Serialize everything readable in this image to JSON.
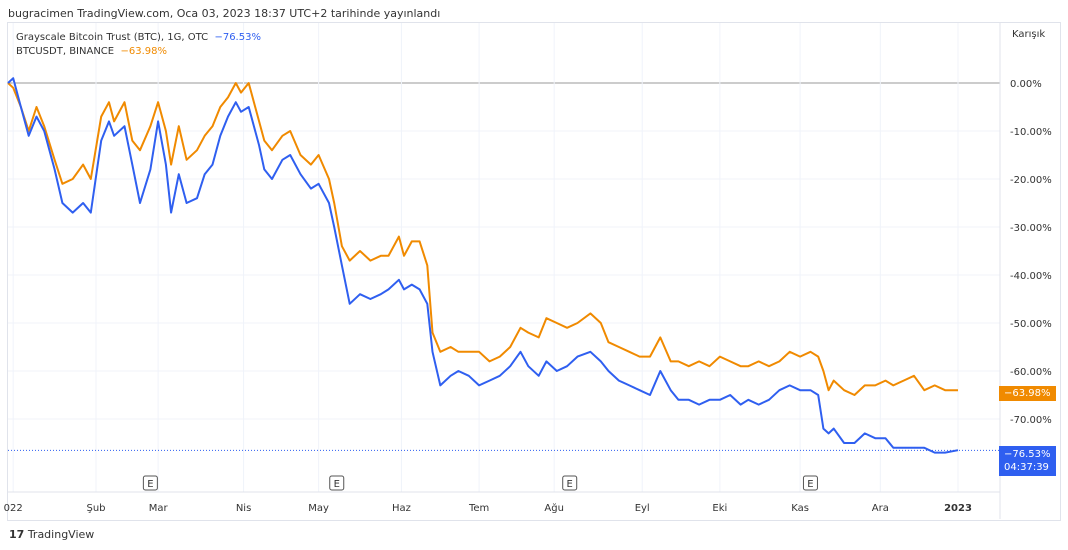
{
  "header": "bugracimen TradingView.com, Oca 03, 2023 18:37 UTC+2 tarihinde yayınlandı",
  "scale_mode": "Karışık",
  "footer": "TradingView",
  "chart_data": {
    "type": "line",
    "title": "",
    "xlabel": "",
    "ylabel": "",
    "ylim": [
      -80,
      5
    ],
    "grid": true,
    "y_ticks": [
      "0.00%",
      "-10.00%",
      "-20.00%",
      "-30.00%",
      "-40.00%",
      "-50.00%",
      "-60.00%",
      "-70.00%"
    ],
    "y_tick_values": [
      0,
      -10,
      -20,
      -30,
      -40,
      -50,
      -60,
      -70
    ],
    "x_ticks": [
      "022",
      "Şub",
      "Mar",
      "Nis",
      "May",
      "Haz",
      "Tem",
      "Ağu",
      "Eyl",
      "Eki",
      "Kas",
      "Ara",
      "2023"
    ],
    "x_tick_days": [
      2,
      34,
      58,
      91,
      120,
      152,
      182,
      211,
      245,
      275,
      306,
      337,
      367
    ],
    "event_markers": {
      "label": "E",
      "days": [
        55,
        127,
        217,
        310
      ]
    },
    "x_days": [
      0,
      2,
      5,
      8,
      11,
      14,
      18,
      21,
      25,
      29,
      32,
      36,
      39,
      41,
      45,
      48,
      51,
      55,
      58,
      61,
      63,
      66,
      69,
      73,
      76,
      79,
      82,
      85,
      88,
      90,
      93,
      97,
      99,
      102,
      106,
      109,
      113,
      117,
      120,
      124,
      126,
      129,
      132,
      136,
      140,
      144,
      147,
      151,
      153,
      156,
      159,
      162,
      164,
      167,
      171,
      174,
      178,
      182,
      186,
      190,
      194,
      198,
      201,
      205,
      208,
      212,
      216,
      220,
      225,
      229,
      232,
      236,
      240,
      244,
      248,
      252,
      256,
      259,
      263,
      267,
      271,
      275,
      279,
      283,
      286,
      290,
      294,
      298,
      302,
      306,
      310,
      313,
      315,
      317,
      319,
      323,
      327,
      331,
      335,
      339,
      342,
      346,
      350,
      354,
      358,
      362,
      367
    ],
    "series": [
      {
        "name": "Grayscale Bitcoin Trust (BTC), 1G, OTC",
        "last": "−76.53%",
        "time": "04:37:39",
        "color": "#2f5ff0",
        "values": [
          0,
          1,
          -5,
          -11,
          -7,
          -10,
          -18,
          -25,
          -27,
          -25,
          -27,
          -12,
          -8,
          -11,
          -9,
          -17,
          -25,
          -18,
          -8,
          -17,
          -27,
          -19,
          -25,
          -24,
          -19,
          -17,
          -11,
          -7,
          -4,
          -6,
          -5,
          -13,
          -18,
          -20,
          -16,
          -15,
          -19,
          -22,
          -21,
          -25,
          -30,
          -38,
          -46,
          -44,
          -45,
          -44,
          -43,
          -41,
          -43,
          -42,
          -43,
          -46,
          -56,
          -63,
          -61,
          -60,
          -61,
          -63,
          -62,
          -61,
          -59,
          -56,
          -59,
          -61,
          -58,
          -60,
          -59,
          -57,
          -56,
          -58,
          -60,
          -62,
          -63,
          -64,
          -65,
          -60,
          -64,
          -66,
          -66,
          -67,
          -66,
          -66,
          -65,
          -67,
          -66,
          -67,
          -66,
          -64,
          -63,
          -64,
          -64,
          -65,
          -72,
          -73,
          -72,
          -75,
          -75,
          -73,
          -74,
          -74,
          -76,
          -76,
          -76,
          -76,
          -77,
          -77,
          -76.5
        ]
      },
      {
        "name": "BTCUSDT, BINANCE",
        "last": "−63.98%",
        "color": "#f08a00",
        "values": [
          0,
          -1,
          -5,
          -10,
          -5,
          -9,
          -16,
          -21,
          -20,
          -17,
          -20,
          -7,
          -4,
          -8,
          -4,
          -12,
          -14,
          -9,
          -4,
          -10,
          -17,
          -9,
          -16,
          -14,
          -11,
          -9,
          -5,
          -3,
          0,
          -2,
          0,
          -8,
          -12,
          -14,
          -11,
          -10,
          -15,
          -17,
          -15,
          -20,
          -25,
          -34,
          -37,
          -35,
          -37,
          -36,
          -36,
          -32,
          -36,
          -33,
          -33,
          -38,
          -52,
          -56,
          -55,
          -56,
          -56,
          -56,
          -58,
          -57,
          -55,
          -51,
          -52,
          -53,
          -49,
          -50,
          -51,
          -50,
          -48,
          -50,
          -54,
          -55,
          -56,
          -57,
          -57,
          -53,
          -58,
          -58,
          -59,
          -58,
          -59,
          -57,
          -58,
          -59,
          -59,
          -58,
          -59,
          -58,
          -56,
          -57,
          -56,
          -57,
          -60,
          -64,
          -62,
          -64,
          -65,
          -63,
          -63,
          -62,
          -63,
          -62,
          -61,
          -64,
          -63,
          -64,
          -64
        ]
      }
    ]
  }
}
